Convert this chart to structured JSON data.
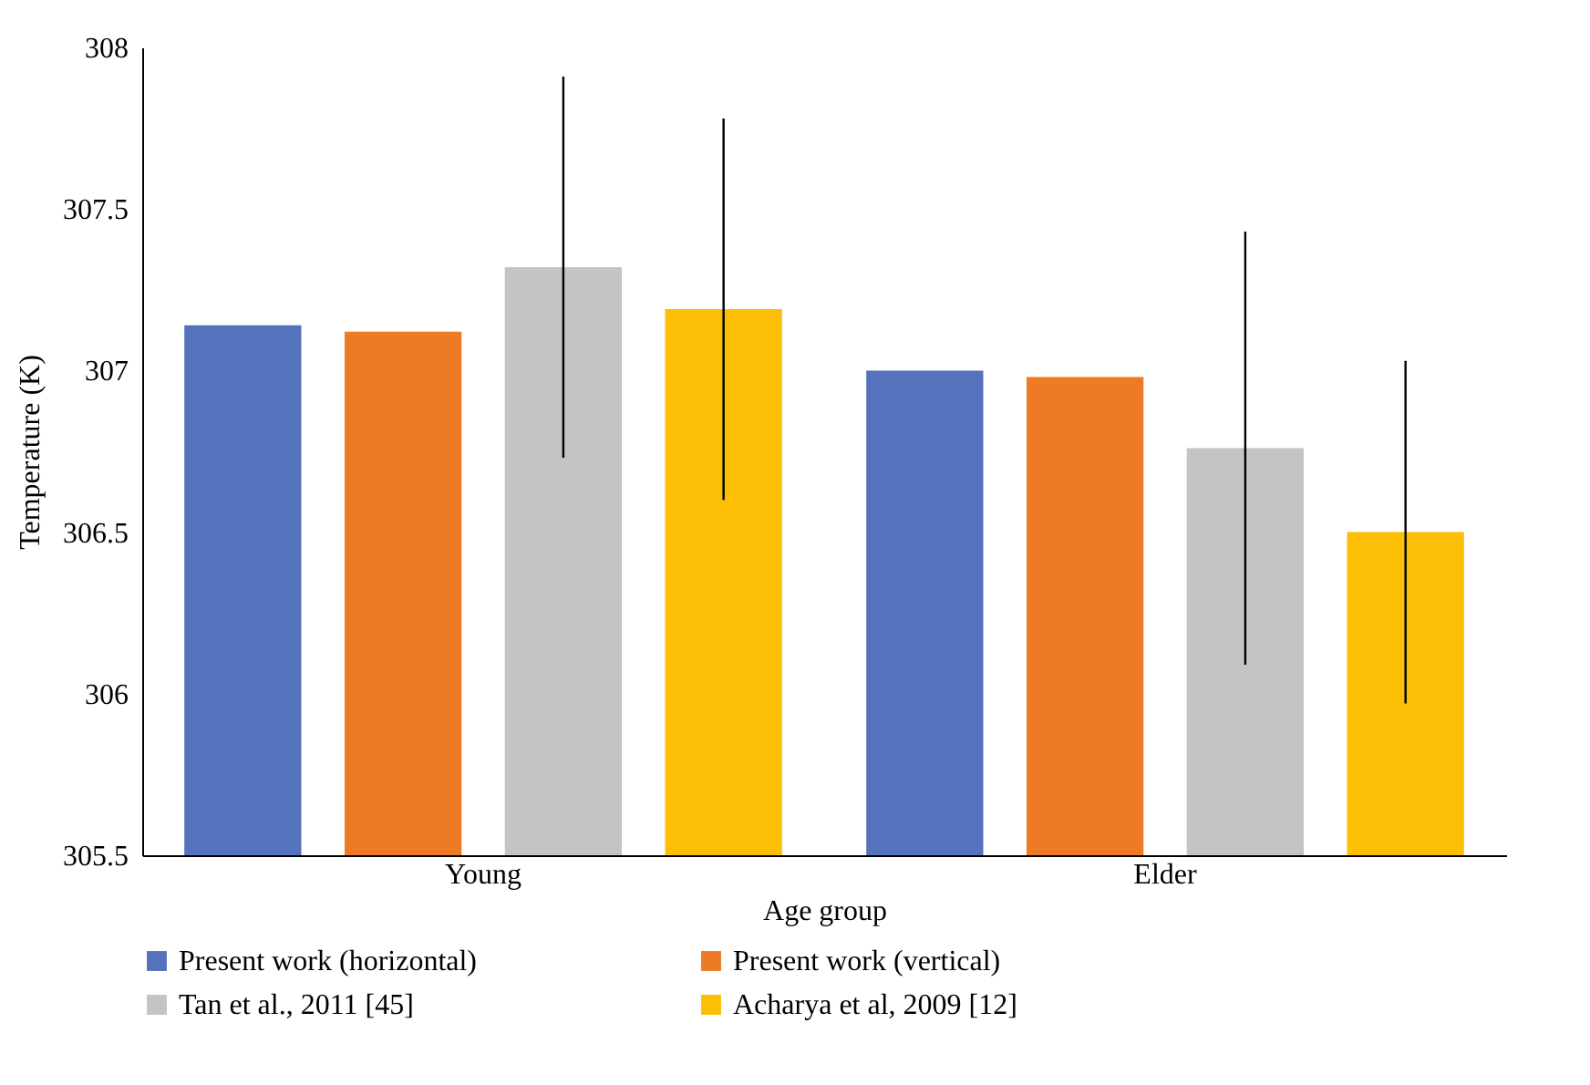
{
  "chart_data": {
    "type": "bar",
    "xlabel": "Age group",
    "ylabel": "Temperature (K)",
    "categories": [
      "Young",
      "Elder"
    ],
    "series": [
      {
        "name": "Present work (horizontal)",
        "color": "#5572bc",
        "values": [
          307.14,
          307.0
        ]
      },
      {
        "name": "Present work (vertical)",
        "color": "#ed7b25",
        "values": [
          307.12,
          306.98
        ]
      },
      {
        "name": "Tan et al., 2011 [45]",
        "color": "#c4c4c4",
        "values": [
          307.32,
          306.76
        ],
        "errors": [
          0.59,
          0.67
        ]
      },
      {
        "name": "Acharya et al, 2009 [12]",
        "color": "#fcbf05",
        "values": [
          307.19,
          306.5
        ],
        "errors": [
          0.59,
          0.53
        ]
      }
    ],
    "ylim": [
      305.5,
      308
    ],
    "yticks": [
      305.5,
      306,
      306.5,
      307,
      307.5,
      308
    ],
    "grid": false,
    "legend": "bottom"
  }
}
